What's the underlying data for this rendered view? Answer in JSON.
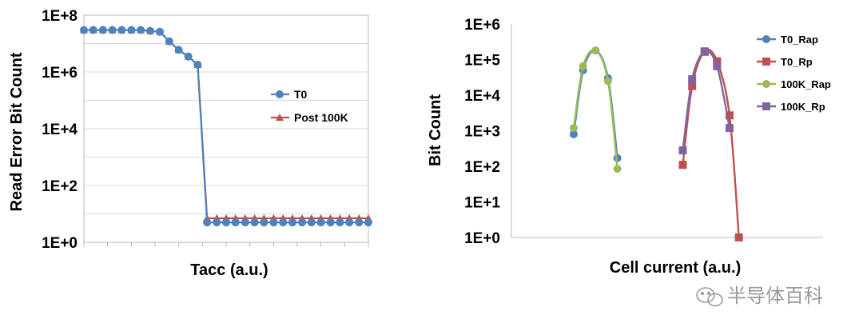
{
  "watermark": {
    "text": "半导体百科"
  },
  "chart_data": [
    {
      "type": "line",
      "xlabel": "Tacc (a.u.)",
      "ylabel": "Read Error Bit Count",
      "y_scale": "log",
      "ylim": [
        1,
        100000000
      ],
      "y_ticks": [
        {
          "label": "1E+0"
        },
        {
          "label": "1E+2"
        },
        {
          "label": "1E+4"
        },
        {
          "label": "1E+6"
        },
        {
          "label": "1E+8"
        }
      ],
      "grid": true,
      "legend": "right",
      "x": [
        0,
        0.033,
        0.067,
        0.1,
        0.133,
        0.167,
        0.2,
        0.233,
        0.267,
        0.3,
        0.333,
        0.367,
        0.4,
        0.433,
        0.467,
        0.5,
        0.533,
        0.567,
        0.6,
        0.633,
        0.667,
        0.7,
        0.733,
        0.767,
        0.8,
        0.833,
        0.867,
        0.9,
        0.933,
        0.967,
        1.0
      ],
      "series": [
        {
          "name": "T0",
          "color": "#4f81bd",
          "marker": "circle",
          "values": [
            30000000,
            30000000,
            30000000,
            30000000,
            30000000,
            30000000,
            30000000,
            28000000,
            26000000,
            12000000,
            6000000,
            3500000,
            1800000,
            5,
            5,
            5,
            5,
            5,
            5,
            5,
            5,
            5,
            5,
            5,
            5,
            5,
            5,
            5,
            5,
            5,
            5
          ]
        },
        {
          "name": "Post 100K",
          "color": "#c0504d",
          "marker": "triangle",
          "values": [
            30000000,
            30000000,
            30000000,
            30000000,
            30000000,
            30000000,
            30000000,
            28000000,
            26000000,
            12000000,
            6000000,
            3500000,
            1800000,
            7,
            7,
            7,
            7,
            7,
            7,
            7,
            7,
            7,
            7,
            7,
            7,
            7,
            7,
            7,
            7,
            7,
            7
          ]
        }
      ]
    },
    {
      "type": "line",
      "xlabel": "Cell current (a.u.)",
      "ylabel": "Bit Count",
      "y_scale": "log",
      "ylim": [
        1,
        1000000
      ],
      "y_ticks": [
        {
          "label": "1E+0"
        },
        {
          "label": "1E+1"
        },
        {
          "label": "1E+2"
        },
        {
          "label": "1E+3"
        },
        {
          "label": "1E+4"
        },
        {
          "label": "1E+5"
        },
        {
          "label": "1E+6"
        }
      ],
      "grid": false,
      "legend": "top-right",
      "series": [
        {
          "name": "T0_Rap",
          "color": "#4f81bd",
          "marker": "circle",
          "x": [
            0.2,
            0.23,
            0.27,
            0.31,
            0.34
          ],
          "values": [
            800,
            50000,
            180000,
            30000,
            170
          ]
        },
        {
          "name": "T0_Rp",
          "color": "#c0504d",
          "marker": "square",
          "x": [
            0.55,
            0.58,
            0.62,
            0.66,
            0.7,
            0.73
          ],
          "values": [
            110,
            18000,
            170000,
            90000,
            2700,
            1
          ]
        },
        {
          "name": "100K_Rap",
          "color": "#9bbb59",
          "marker": "circle",
          "x": [
            0.2,
            0.23,
            0.27,
            0.31,
            0.34
          ],
          "values": [
            1200,
            65000,
            180000,
            25000,
            85
          ]
        },
        {
          "name": "100K_Rp",
          "color": "#8064a2",
          "marker": "square",
          "x": [
            0.55,
            0.58,
            0.62,
            0.66,
            0.7
          ],
          "values": [
            280,
            28000,
            165000,
            65000,
            1200
          ]
        }
      ]
    }
  ]
}
